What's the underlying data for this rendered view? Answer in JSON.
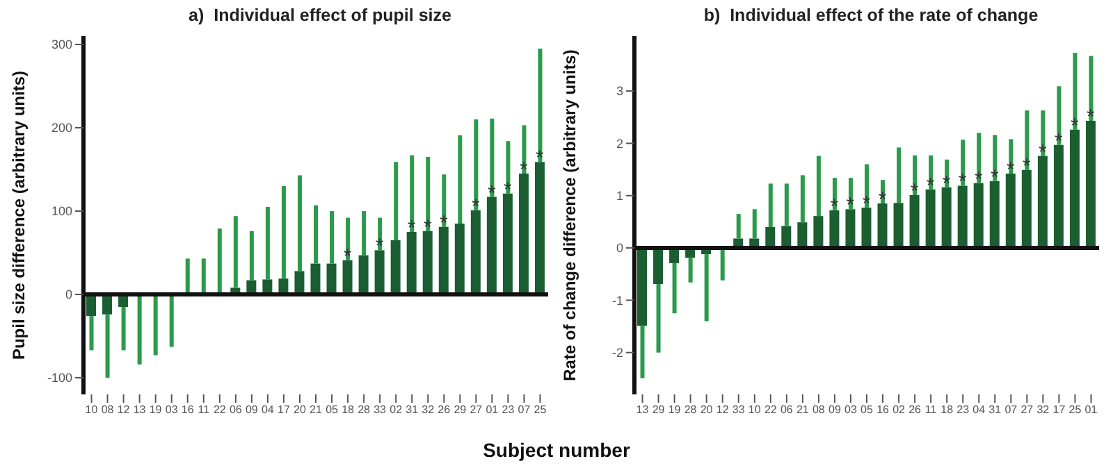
{
  "chart_data": [
    {
      "type": "bar",
      "title": "a)  Individual effect of pupil size",
      "xlabel": "Subject number",
      "ylabel": "Pupil size difference (arbitrary units)",
      "categories": [
        "10",
        "08",
        "12",
        "13",
        "19",
        "03",
        "16",
        "11",
        "22",
        "06",
        "09",
        "04",
        "17",
        "20",
        "21",
        "05",
        "18",
        "28",
        "33",
        "02",
        "31",
        "32",
        "26",
        "29",
        "27",
        "01",
        "23",
        "07",
        "25"
      ],
      "series": [
        {
          "color": "#1b5e32",
          "values": [
            -26,
            -24,
            -15,
            0,
            0,
            0,
            0,
            0,
            0,
            8,
            17,
            18,
            19,
            28,
            37,
            37,
            41,
            47,
            53,
            65,
            75,
            76,
            81,
            85,
            101,
            117,
            121,
            145,
            159
          ],
          "errors": [
            [
              -67,
              -26
            ],
            [
              -100,
              -24
            ],
            [
              -67,
              -15
            ],
            [
              -84,
              0
            ],
            [
              -73,
              0
            ],
            [
              -63,
              0
            ],
            [
              0,
              43
            ],
            [
              0,
              43
            ],
            [
              0,
              79
            ],
            [
              8,
              94
            ],
            [
              17,
              76
            ],
            [
              18,
              105
            ],
            [
              19,
              130
            ],
            [
              28,
              143
            ],
            [
              37,
              107
            ],
            [
              37,
              100
            ],
            [
              41,
              92
            ],
            [
              47,
              100
            ],
            [
              53,
              92
            ],
            [
              65,
              159
            ],
            [
              75,
              167
            ],
            [
              76,
              165
            ],
            [
              81,
              144
            ],
            [
              85,
              191
            ],
            [
              101,
              210
            ],
            [
              117,
              211
            ],
            [
              121,
              184
            ],
            [
              145,
              203
            ],
            [
              159,
              295
            ]
          ],
          "value_labels": [
            null,
            null,
            null,
            null,
            null,
            null,
            null,
            null,
            null,
            null,
            null,
            null,
            null,
            null,
            null,
            null,
            "*",
            null,
            "*",
            null,
            "*",
            "*",
            "*",
            null,
            "*",
            "*",
            "*",
            "*",
            "*"
          ]
        }
      ],
      "ylim": [
        -120,
        310
      ],
      "yticks": [
        -100,
        0,
        100,
        200,
        300
      ]
    },
    {
      "type": "bar",
      "title": "b)  Individual effect of the rate of change",
      "ylabel": "Rate of change difference (arbitrary units)",
      "categories": [
        "13",
        "29",
        "19",
        "28",
        "20",
        "12",
        "33",
        "10",
        "22",
        "06",
        "21",
        "08",
        "09",
        "03",
        "05",
        "16",
        "02",
        "26",
        "11",
        "18",
        "23",
        "04",
        "31",
        "07",
        "27",
        "32",
        "17",
        "25",
        "01"
      ],
      "series": [
        {
          "color": "#1b5e32",
          "values": [
            -1.49,
            -0.69,
            -0.29,
            -0.19,
            -0.12,
            0,
            0.18,
            0.18,
            0.4,
            0.42,
            0.49,
            0.61,
            0.72,
            0.74,
            0.77,
            0.85,
            0.86,
            1.01,
            1.12,
            1.16,
            1.19,
            1.24,
            1.28,
            1.42,
            1.49,
            1.76,
            1.97,
            2.26,
            2.43
          ],
          "errors": [
            [
              -2.49,
              -1.49
            ],
            [
              -2.0,
              -0.69
            ],
            [
              -1.25,
              -0.29
            ],
            [
              -0.66,
              -0.19
            ],
            [
              -1.4,
              -0.12
            ],
            [
              -0.62,
              0
            ],
            [
              0.18,
              0.65
            ],
            [
              0.18,
              0.74
            ],
            [
              0.4,
              1.23
            ],
            [
              0.42,
              1.23
            ],
            [
              0.49,
              1.39
            ],
            [
              0.61,
              1.76
            ],
            [
              0.72,
              1.34
            ],
            [
              0.74,
              1.34
            ],
            [
              0.77,
              1.6
            ],
            [
              0.85,
              1.3
            ],
            [
              0.86,
              1.92
            ],
            [
              1.01,
              1.77
            ],
            [
              1.12,
              1.77
            ],
            [
              1.16,
              1.69
            ],
            [
              1.19,
              2.07
            ],
            [
              1.24,
              2.2
            ],
            [
              1.28,
              2.16
            ],
            [
              1.42,
              2.08
            ],
            [
              1.49,
              2.63
            ],
            [
              1.76,
              2.63
            ],
            [
              1.97,
              3.09
            ],
            [
              2.26,
              3.73
            ],
            [
              2.43,
              3.67
            ]
          ],
          "value_labels": [
            null,
            null,
            null,
            null,
            null,
            null,
            null,
            null,
            null,
            null,
            null,
            null,
            "*",
            "*",
            "*",
            "*",
            null,
            "*",
            "*",
            "*",
            "*",
            "*",
            "*",
            "*",
            "*",
            "*",
            "*",
            "*",
            "*"
          ]
        }
      ],
      "ylim": [
        -2.8,
        4.05
      ],
      "yticks": [
        -2,
        -1,
        0,
        1,
        2,
        3
      ]
    }
  ]
}
